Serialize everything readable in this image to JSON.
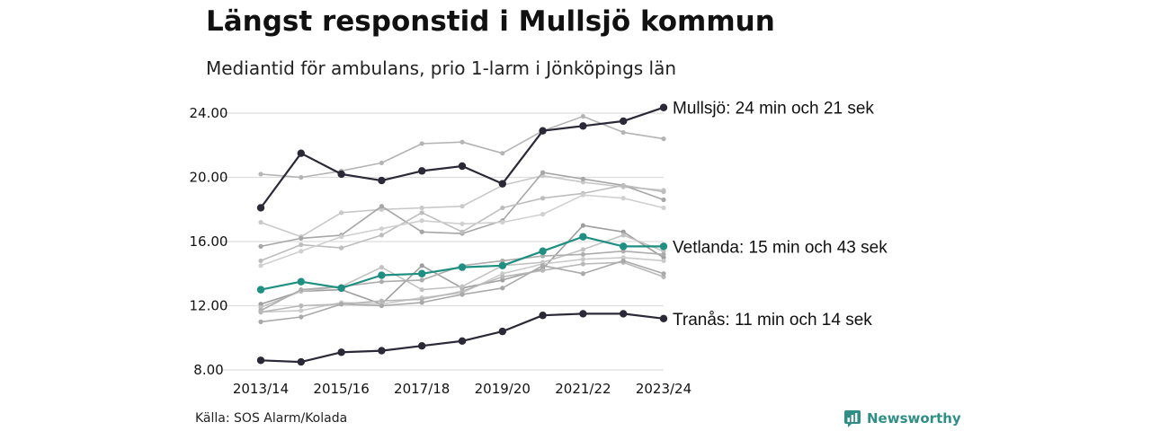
{
  "header": {
    "title": "Längst responstid i Mullsjö kommun",
    "subtitle": "Mediantid för ambulans, prio 1-larm i Jönköpings län"
  },
  "footer": {
    "source": "Källa: SOS Alarm/Kolada",
    "brand": "Newsworthy",
    "brand_icon": "newsworthy-logo-icon"
  },
  "colors": {
    "background_series": [
      "#b4b4b4",
      "#c8c8c8",
      "#a6a6a6",
      "#bdbdbd",
      "#d0d0d0",
      "#9e9e9e",
      "#c2c2c2",
      "#adadad",
      "#cacaca",
      "#b8b8b8",
      "#a9a9a9"
    ],
    "mullsjo": "#2b2937",
    "vetlanda": "#1f8f82",
    "tranas": "#2b2937",
    "grid": "#dedede",
    "brand": "#2f8f86"
  },
  "chart_data": {
    "type": "line",
    "x": [
      "2013/14",
      "2014/15",
      "2015/16",
      "2016/17",
      "2017/18",
      "2018/19",
      "2019/20",
      "2020/21",
      "2021/22",
      "2022/23",
      "2023/24"
    ],
    "x_ticks": [
      "2013/14",
      "2015/16",
      "2017/18",
      "2019/20",
      "2021/22",
      "2023/24"
    ],
    "y_ticks": [
      "8.00",
      "12.00",
      "16.00",
      "20.00",
      "24.00"
    ],
    "ylim": [
      8,
      24.4
    ],
    "grid": "horizontal",
    "series": [
      {
        "group": "background",
        "values": [
          20.2,
          20.0,
          20.4,
          20.9,
          22.1,
          22.2,
          21.5,
          22.9,
          23.8,
          22.8,
          22.4
        ]
      },
      {
        "group": "background",
        "values": [
          17.2,
          16.3,
          17.8,
          18.0,
          18.1,
          18.2,
          19.5,
          20.1,
          19.7,
          19.4,
          19.2
        ]
      },
      {
        "group": "background",
        "values": [
          15.7,
          16.2,
          16.4,
          18.2,
          16.6,
          16.5,
          17.3,
          20.3,
          19.9,
          19.5,
          18.6
        ]
      },
      {
        "group": "background",
        "values": [
          14.8,
          15.8,
          15.6,
          16.4,
          17.8,
          16.6,
          18.1,
          18.7,
          19.0,
          19.5,
          19.1
        ]
      },
      {
        "group": "background",
        "values": [
          14.5,
          15.4,
          16.3,
          16.8,
          17.3,
          17.1,
          17.2,
          17.7,
          18.9,
          18.7,
          18.1
        ]
      },
      {
        "group": "background",
        "values": [
          12.1,
          12.9,
          13.0,
          12.1,
          14.5,
          13.1,
          13.6,
          14.3,
          17.0,
          16.6,
          15.0
        ]
      },
      {
        "group": "background",
        "values": [
          11.9,
          12.9,
          13.2,
          14.4,
          13.0,
          13.2,
          14.5,
          14.7,
          15.5,
          16.4,
          15.4
        ]
      },
      {
        "group": "background",
        "values": [
          11.7,
          13.0,
          13.2,
          13.5,
          13.6,
          14.5,
          14.8,
          15.1,
          15.2,
          15.4,
          15.2
        ]
      },
      {
        "group": "background",
        "values": [
          11.6,
          11.7,
          12.2,
          12.1,
          12.5,
          12.8,
          14.0,
          14.6,
          14.9,
          15.0,
          14.8
        ]
      },
      {
        "group": "background",
        "values": [
          11.6,
          12.0,
          12.1,
          12.3,
          12.4,
          12.9,
          13.8,
          14.2,
          14.6,
          14.7,
          13.8
        ]
      },
      {
        "group": "background",
        "values": [
          11.0,
          11.3,
          12.1,
          12.0,
          12.2,
          12.7,
          13.1,
          14.5,
          14.0,
          14.8,
          14.0
        ]
      },
      {
        "group": "highlight",
        "name": "Mullsjö",
        "label": "Mullsjö: 24 min och 21 sek",
        "values": [
          18.1,
          21.5,
          20.2,
          19.8,
          20.4,
          20.7,
          19.6,
          22.9,
          23.2,
          23.5,
          24.35
        ]
      },
      {
        "group": "highlight",
        "name": "Vetlanda",
        "label": "Vetlanda: 15 min och 43 sek",
        "values": [
          13.0,
          13.5,
          13.1,
          13.9,
          14.0,
          14.4,
          14.5,
          15.4,
          16.3,
          15.7,
          15.7
        ]
      },
      {
        "group": "highlight",
        "name": "Tranås",
        "label": "Tranås: 11 min och 14 sek",
        "values": [
          8.6,
          8.5,
          9.1,
          9.2,
          9.5,
          9.8,
          10.4,
          11.4,
          11.5,
          11.5,
          11.2
        ]
      }
    ]
  }
}
